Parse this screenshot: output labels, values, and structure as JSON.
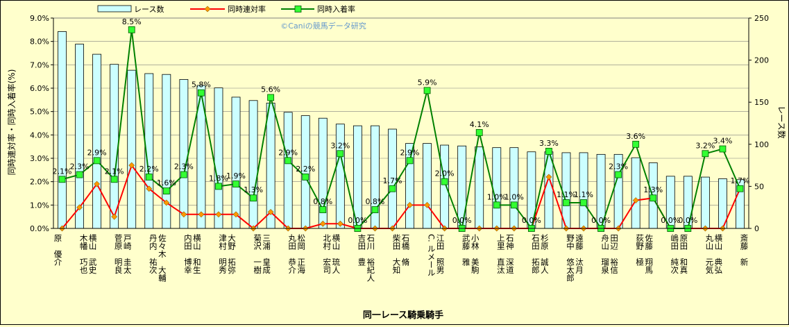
{
  "chart_data": {
    "type": "bar",
    "watermark": "©Caniの競馬データ研究",
    "xlabel": "同一レース騎乗騎手",
    "ylabel_left": "同時連対率・同時入着率(%)",
    "ylabel_right": "レース数",
    "ylim_left": [
      0,
      9
    ],
    "ylim_right": [
      0,
      250
    ],
    "y_ticks_left": [
      "0.0%",
      "1.0%",
      "2.0%",
      "3.0%",
      "4.0%",
      "5.0%",
      "6.0%",
      "7.0%",
      "8.0%",
      "9.0%"
    ],
    "y_ticks_right": [
      "0",
      "50",
      "100",
      "150",
      "200",
      "250"
    ],
    "legend_position": "top",
    "categories": [
      "原　優介",
      "木幡　巧也",
      "横山　武史",
      "菅原　明良",
      "戸崎　圭太",
      "丹内　祐次",
      "佐々木　大輔",
      "内田　博幸",
      "横山　和生",
      "津村　明秀",
      "大野　拓弥",
      "菊沢　一樹",
      "三浦　皇成",
      "丸田　恭介",
      "松岡　正海",
      "北村　宏司",
      "横山　琉人",
      "吉田　豊",
      "石川　裕紀人",
      "柴田　大知",
      "石橋　脩",
      "C. ルメール",
      "江田　照男",
      "武藤　雅",
      "小林　美駒",
      "上里　直汰",
      "石神　深道",
      "石田　拓郎",
      "杉原　誠人",
      "野中　悠太郎",
      "遠藤　汰月",
      "舟山　瑠泉",
      "田辺　裕信",
      "荻野　極",
      "佐藤　翔馬",
      "嶋田　純次",
      "原田　和真",
      "丸山　元気",
      "横山　典弘",
      "斎藤　新"
    ],
    "series": [
      {
        "name": "レース数",
        "type": "bar",
        "axis": "right",
        "color": "#ccffff",
        "values": [
          234,
          219,
          207,
          195,
          188,
          184,
          183,
          177,
          170,
          167,
          156,
          152,
          149,
          138,
          134,
          131,
          124,
          122,
          122,
          118,
          101,
          101,
          99,
          98,
          97,
          96,
          96,
          91,
          91,
          90,
          90,
          88,
          88,
          84,
          78,
          62,
          62,
          61,
          59,
          58
        ]
      },
      {
        "name": "同時連対率",
        "type": "line",
        "axis": "left",
        "color": "#ff0000",
        "values": [
          0.0,
          0.9,
          1.9,
          0.5,
          2.7,
          1.7,
          1.1,
          0.6,
          0.6,
          0.6,
          0.6,
          0.0,
          0.7,
          0.0,
          0.0,
          0.2,
          0.2,
          0.0,
          0.0,
          0.0,
          1.0,
          1.0,
          0.0,
          0.0,
          0.0,
          0.0,
          0.0,
          0.0,
          2.2,
          0.0,
          0.0,
          0.0,
          0.0,
          1.2,
          1.3,
          0.0,
          0.0,
          0.0,
          0.0,
          1.7
        ]
      },
      {
        "name": "同時入着率",
        "type": "line",
        "axis": "left",
        "color": "#008000",
        "values": [
          2.1,
          2.3,
          2.9,
          2.1,
          8.5,
          2.2,
          1.6,
          2.3,
          5.8,
          1.8,
          1.9,
          1.3,
          5.6,
          2.9,
          2.2,
          0.8,
          3.2,
          0.0,
          0.8,
          1.7,
          2.9,
          5.9,
          2.0,
          0.0,
          4.1,
          1.0,
          1.0,
          0.0,
          3.3,
          1.1,
          1.1,
          0.0,
          2.3,
          3.6,
          1.3,
          0.0,
          0.0,
          3.2,
          3.4,
          1.7
        ],
        "labels": [
          "2.1%",
          "2.3%",
          "2.9%",
          "2.1%",
          "8.5%",
          "2.2%",
          "1.6%",
          "2.3%",
          "5.8%",
          "1.8%",
          "1.9%",
          "1.3%",
          "5.6%",
          "2.9%",
          "2.2%",
          "0.8%",
          "3.2%",
          "0.0%",
          "0.8%",
          "1.7%",
          "2.9%",
          "5.9%",
          "2.0%",
          "0.0%",
          "4.1%",
          "1.0%",
          "1.0%",
          "0.0%",
          "3.3%",
          "1.1%",
          "1.1%",
          "0.0%",
          "2.3%",
          "3.6%",
          "1.3%",
          "0.0%",
          "0.0%",
          "3.2%",
          "3.4%",
          "1.7%"
        ]
      }
    ]
  }
}
